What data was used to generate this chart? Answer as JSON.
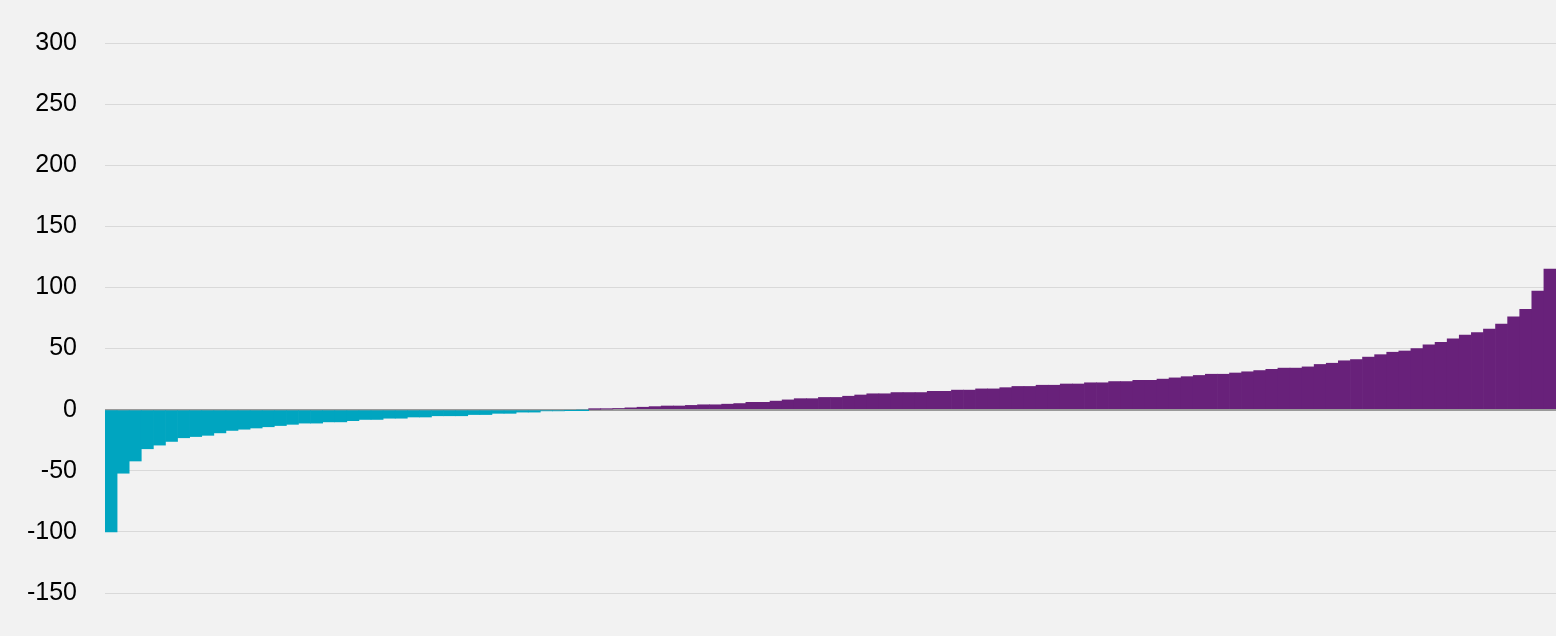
{
  "chart_data": {
    "type": "bar",
    "categories": [
      null,
      null,
      null,
      null,
      null,
      null,
      null,
      null,
      null,
      null,
      null,
      null,
      null,
      null,
      null,
      null,
      null,
      null,
      null,
      null,
      null,
      null,
      null,
      null,
      null,
      null,
      null,
      null,
      null,
      null,
      null,
      null,
      null,
      null,
      null,
      null,
      null,
      null,
      null,
      null,
      null,
      null,
      null,
      null,
      null,
      null,
      null,
      null,
      null,
      null,
      null,
      null,
      null,
      null,
      null,
      null,
      null,
      null,
      null,
      null,
      null,
      null,
      null,
      null,
      null,
      null,
      null,
      null,
      null,
      null,
      null,
      null,
      null,
      null,
      null,
      null,
      null,
      null,
      null,
      null,
      null,
      null,
      null,
      null,
      null,
      null,
      null,
      null,
      null,
      null,
      null,
      null,
      null,
      null,
      null,
      null,
      null,
      null,
      null,
      null,
      null,
      null,
      null,
      null,
      null,
      null,
      null,
      null,
      null,
      null,
      null,
      null,
      null,
      null,
      null,
      null,
      null,
      null,
      null,
      null
    ],
    "values": [
      -100,
      -52,
      -42,
      -32,
      -29,
      -26,
      -23,
      -22,
      -21,
      -19,
      -17,
      -16,
      -15,
      -14,
      -13,
      -12,
      -11,
      -11,
      -10,
      -10,
      -9,
      -8,
      -8,
      -7,
      -7,
      -6,
      -6,
      -5,
      -5,
      -5,
      -4,
      -4,
      -3,
      -3,
      -2,
      -2,
      -1,
      -1,
      -0.5,
      -0.3,
      0.3,
      0.5,
      1,
      1.5,
      2,
      2.5,
      3,
      3,
      3.5,
      4,
      4,
      4.5,
      5,
      6,
      6,
      7,
      8,
      9,
      9,
      10,
      10,
      11,
      12,
      13,
      13,
      14,
      14,
      14,
      15,
      15,
      16,
      16,
      17,
      17,
      18,
      19,
      19,
      20,
      20,
      21,
      21,
      22,
      22,
      23,
      23,
      24,
      24,
      25,
      26,
      27,
      28,
      29,
      29,
      30,
      31,
      32,
      33,
      34,
      34,
      35,
      37,
      38,
      40,
      41,
      43,
      45,
      47,
      48,
      50,
      53,
      55,
      58,
      61,
      63,
      66,
      70,
      76,
      82,
      97,
      115
    ],
    "colors": [
      "#00a5c0",
      "#00a5c0",
      "#00a5c0",
      "#00a5c0",
      "#00a5c0",
      "#00a5c0",
      "#00a5c0",
      "#00a5c0",
      "#00a5c0",
      "#00a5c0",
      "#00a5c0",
      "#00a5c0",
      "#00a5c0",
      "#00a5c0",
      "#00a5c0",
      "#00a5c0",
      "#00a5c0",
      "#00a5c0",
      "#00a5c0",
      "#00a5c0",
      "#00a5c0",
      "#00a5c0",
      "#00a5c0",
      "#00a5c0",
      "#00a5c0",
      "#00a5c0",
      "#00a5c0",
      "#00a5c0",
      "#00a5c0",
      "#00a5c0",
      "#00a5c0",
      "#00a5c0",
      "#00a5c0",
      "#00a5c0",
      "#00a5c0",
      "#00a5c0",
      "#00a5c0",
      "#00a5c0",
      "#00a5c0",
      "#00a5c0",
      "#68217a",
      "#68217a",
      "#68217a",
      "#68217a",
      "#68217a",
      "#68217a",
      "#68217a",
      "#68217a",
      "#68217a",
      "#68217a",
      "#68217a",
      "#68217a",
      "#68217a",
      "#68217a",
      "#68217a",
      "#68217a",
      "#68217a",
      "#68217a",
      "#68217a",
      "#68217a",
      "#68217a",
      "#68217a",
      "#68217a",
      "#68217a",
      "#68217a",
      "#68217a",
      "#68217a",
      "#68217a",
      "#68217a",
      "#68217a",
      "#68217a",
      "#68217a",
      "#68217a",
      "#68217a",
      "#68217a",
      "#68217a",
      "#68217a",
      "#68217a",
      "#68217a",
      "#68217a",
      "#68217a",
      "#68217a",
      "#68217a",
      "#68217a",
      "#68217a",
      "#68217a",
      "#68217a",
      "#68217a",
      "#68217a",
      "#68217a",
      "#68217a",
      "#68217a",
      "#68217a",
      "#68217a",
      "#68217a",
      "#68217a",
      "#68217a",
      "#68217a",
      "#68217a",
      "#68217a",
      "#68217a",
      "#68217a",
      "#68217a",
      "#68217a",
      "#68217a",
      "#68217a",
      "#68217a",
      "#68217a",
      "#68217a",
      "#68217a",
      "#68217a",
      "#68217a",
      "#68217a",
      "#68217a",
      "#68217a",
      "#68217a",
      "#68217a",
      "#68217a",
      "#68217a",
      "#68217a"
    ],
    "ylim": [
      -150,
      300
    ],
    "yticks": [
      -150,
      -100,
      -50,
      0,
      50,
      100,
      150,
      200,
      250,
      300
    ],
    "grid": "y",
    "legend": false
  }
}
